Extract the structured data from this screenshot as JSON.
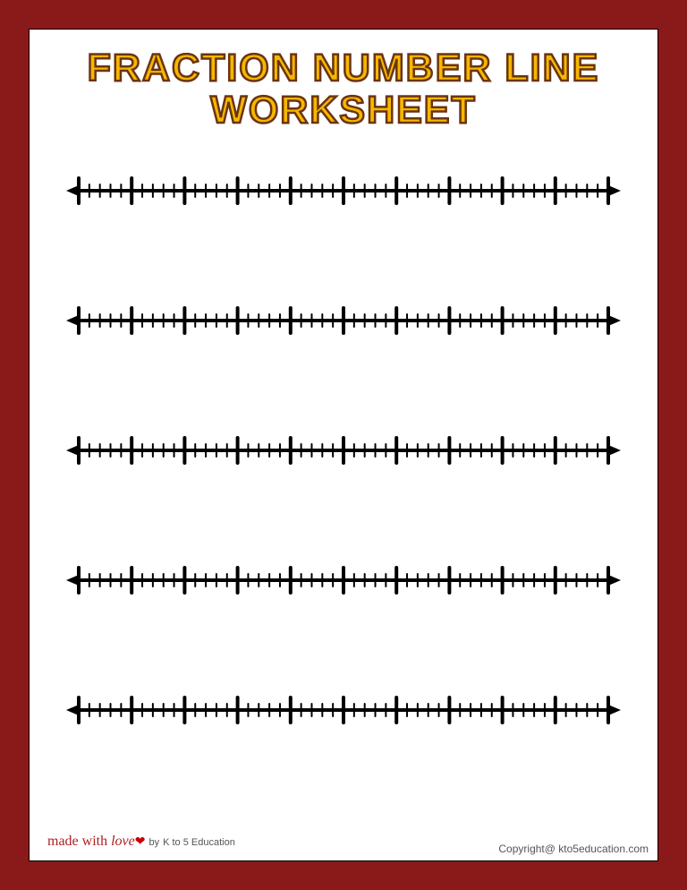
{
  "title": {
    "line1": "FRACTION NUMBER LINE",
    "line2": "WORKSHEET",
    "text_color": "#f5b800",
    "stroke_color": "#6b3410",
    "line1_fontsize": 43,
    "line2_fontsize": 43
  },
  "page": {
    "background_color": "#8a1a1a",
    "paper_color": "#ffffff",
    "border_color": "#000000"
  },
  "number_lines": {
    "count": 5,
    "major_divisions": 10,
    "minor_per_major": 5,
    "line_color": "#000000",
    "major_tick_height": 28,
    "minor_tick_height": 14,
    "line_thickness": 4,
    "major_tick_thickness": 4,
    "minor_tick_thickness": 2
  },
  "footer": {
    "left_text": "made with",
    "love_text": "love",
    "by_text": "by",
    "brand_text": "K to 5 Education",
    "right_text": "Copyright@ kto5education.com"
  }
}
